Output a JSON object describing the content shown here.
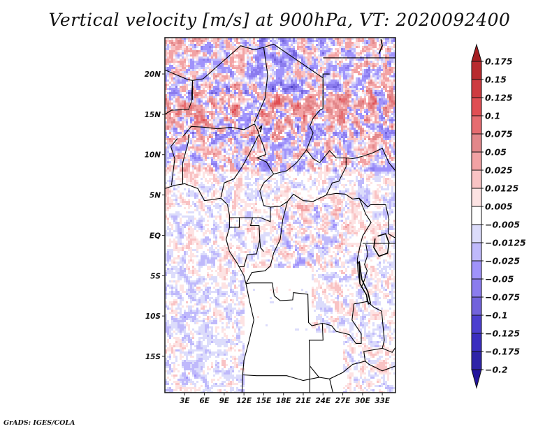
{
  "chart_data": {
    "type": "heatmap",
    "title": "Vertical velocity [m/s] at 900hPa, VT: 2020092400",
    "variable": "Vertical velocity",
    "units": "m/s",
    "level": "900hPa",
    "valid_time": "2020092400",
    "xlabel": "",
    "ylabel": "",
    "xlim": [
      0,
      35
    ],
    "ylim": [
      -19.5,
      24.5
    ],
    "x_ticks": [
      {
        "value": 3,
        "label": "3E"
      },
      {
        "value": 6,
        "label": "6E"
      },
      {
        "value": 9,
        "label": "9E"
      },
      {
        "value": 12,
        "label": "12E"
      },
      {
        "value": 15,
        "label": "15E"
      },
      {
        "value": 18,
        "label": "18E"
      },
      {
        "value": 21,
        "label": "21E"
      },
      {
        "value": 24,
        "label": "24E"
      },
      {
        "value": 27,
        "label": "27E"
      },
      {
        "value": 30,
        "label": "30E"
      },
      {
        "value": 33,
        "label": "33E"
      }
    ],
    "y_ticks": [
      {
        "value": 20,
        "label": "20N"
      },
      {
        "value": 15,
        "label": "15N"
      },
      {
        "value": 10,
        "label": "10N"
      },
      {
        "value": 5,
        "label": "5N"
      },
      {
        "value": 0,
        "label": "EQ"
      },
      {
        "value": -5,
        "label": "5S"
      },
      {
        "value": -10,
        "label": "10S"
      },
      {
        "value": -15,
        "label": "15S"
      }
    ],
    "grid": false,
    "region": "Central Africa",
    "legend_placement": "right",
    "colorbar": {
      "levels": [
        0.175,
        0.15,
        0.125,
        0.1,
        0.075,
        0.05,
        0.025,
        0.0125,
        0.005,
        -0.005,
        -0.0125,
        -0.025,
        -0.05,
        -0.075,
        -0.1,
        -0.125,
        -0.175,
        -0.2
      ],
      "labels": [
        "0.175",
        "0.15",
        "0.125",
        "0.1",
        "0.075",
        "0.05",
        "0.025",
        "0.0125",
        "0.005",
        "−0.005",
        "−0.0125",
        "−0.025",
        "−0.05",
        "−0.075",
        "−0.1",
        "−0.125",
        "−0.175",
        "−0.2"
      ],
      "colors_top_to_bottom": [
        "#a51e22",
        "#b82a2e",
        "#cd3b40",
        "#e04e53",
        "#e66c70",
        "#e2878a",
        "#f2a2a4",
        "#f9c3c4",
        "#fde3e3",
        "#ffffff",
        "#dcdcfb",
        "#bfb9fb",
        "#a093fb",
        "#8b7cee",
        "#7263dc",
        "#4c3fcf",
        "#3a2dbf",
        "#2f24a8",
        "#22149c"
      ],
      "extend": "both"
    },
    "field_summary": "Alternating positive (red, upward) and negative (blue, downward) vertical velocity streaks; strongest red bands over the Sahel (~12-18N), strong blue over northern Chad/Niger; weak values over Angola/Zambia."
  },
  "footer": {
    "credit": "GrADS: IGES/COLA"
  }
}
